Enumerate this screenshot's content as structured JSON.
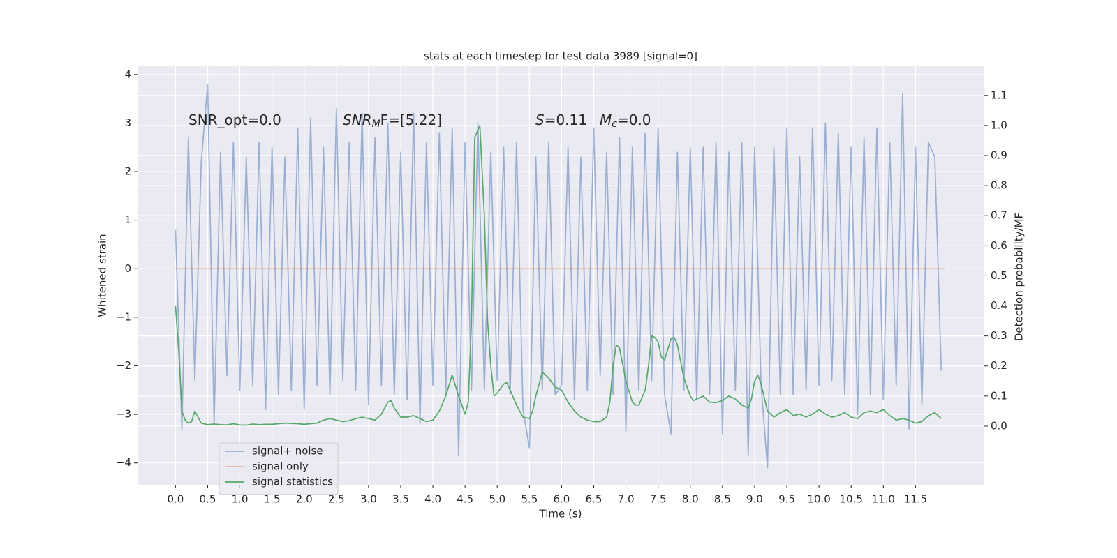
{
  "chart_data": {
    "type": "line",
    "title": "stats at each timestep for test data 3989 [signal=0]",
    "xlabel": "Time (s)",
    "ylabel": "Whitened strain",
    "y2label": "Detection probability/MF",
    "xlim": [
      -0.59,
      12.57
    ],
    "ylim": [
      -4.45,
      4.17
    ],
    "y2lim": [
      -0.195,
      1.197
    ],
    "grid": true,
    "legend": "lower left",
    "xticks": [
      {
        "value": 0,
        "label": "0.0"
      },
      {
        "value": 0.5,
        "label": "0.5"
      },
      {
        "value": 1,
        "label": "1.0"
      },
      {
        "value": 1.5,
        "label": "1.5"
      },
      {
        "value": 2,
        "label": "2.0"
      },
      {
        "value": 2.5,
        "label": "2.5"
      },
      {
        "value": 3,
        "label": "3.0"
      },
      {
        "value": 3.5,
        "label": "3.5"
      },
      {
        "value": 4,
        "label": "4.0"
      },
      {
        "value": 4.5,
        "label": "4.5"
      },
      {
        "value": 5,
        "label": "5.0"
      },
      {
        "value": 5.5,
        "label": "5.5"
      },
      {
        "value": 6,
        "label": "6.0"
      },
      {
        "value": 6.5,
        "label": "6.5"
      },
      {
        "value": 7,
        "label": "7.0"
      },
      {
        "value": 7.5,
        "label": "7.5"
      },
      {
        "value": 8,
        "label": "8.0"
      },
      {
        "value": 8.5,
        "label": "8.5"
      },
      {
        "value": 9,
        "label": "9.0"
      },
      {
        "value": 9.5,
        "label": "9.5"
      },
      {
        "value": 10,
        "label": "10.0"
      },
      {
        "value": 10.5,
        "label": "10.5"
      },
      {
        "value": 11,
        "label": "11.0"
      },
      {
        "value": 11.5,
        "label": "11.5"
      }
    ],
    "yticks": [
      {
        "value": -4,
        "label": "−4"
      },
      {
        "value": -3,
        "label": "−3"
      },
      {
        "value": -2,
        "label": "−2"
      },
      {
        "value": -1,
        "label": "−1"
      },
      0,
      1,
      2,
      3,
      4
    ],
    "y2ticks": [
      {
        "value": 0,
        "label": "0.0"
      },
      {
        "value": 0.1,
        "label": "0.1"
      },
      {
        "value": 0.2,
        "label": "0.2"
      },
      {
        "value": 0.3,
        "label": "0.3"
      },
      {
        "value": 0.4,
        "label": "0.4"
      },
      {
        "value": 0.5,
        "label": "0.5"
      },
      {
        "value": 0.6,
        "label": "0.6"
      },
      {
        "value": 0.7,
        "label": "0.7"
      },
      {
        "value": 0.8,
        "label": "0.8"
      },
      {
        "value": 0.9,
        "label": "0.9"
      },
      {
        "value": 1,
        "label": "1.0"
      },
      {
        "value": 1.1,
        "label": "1.1"
      }
    ],
    "annotations": [
      {
        "parts": [
          "SNR_opt=0.0"
        ]
      },
      {
        "parts": [
          "SNR",
          "M",
          "F=[5.22]"
        ]
      },
      {
        "parts": [
          "S",
          "=0.11"
        ]
      },
      {
        "parts": [
          "M",
          "c",
          "=0.0"
        ]
      }
    ],
    "series": [
      {
        "name": "signal+ noise",
        "color": "#4c72b0",
        "opacity": 0.5,
        "x": [
          0,
          0.1,
          0.2,
          0.3,
          0.4,
          0.5,
          0.6,
          0.7,
          0.8,
          0.9,
          1,
          1.1,
          1.2,
          1.3,
          1.4,
          1.5,
          1.6,
          1.7,
          1.8,
          1.9,
          2,
          2.1,
          2.2,
          2.3,
          2.4,
          2.5,
          2.6,
          2.7,
          2.8,
          2.9,
          3,
          3.1,
          3.2,
          3.3,
          3.4,
          3.5,
          3.6,
          3.7,
          3.8,
          3.9,
          4,
          4.1,
          4.2,
          4.3,
          4.4,
          4.5,
          4.6,
          4.7,
          4.8,
          4.9,
          5,
          5.1,
          5.2,
          5.3,
          5.4,
          5.5,
          5.6,
          5.7,
          5.8,
          5.9,
          6,
          6.1,
          6.2,
          6.3,
          6.4,
          6.5,
          6.6,
          6.7,
          6.8,
          6.9,
          7,
          7.1,
          7.2,
          7.3,
          7.4,
          7.5,
          7.6,
          7.7,
          7.8,
          7.9,
          8,
          8.1,
          8.2,
          8.3,
          8.4,
          8.5,
          8.6,
          8.7,
          8.8,
          8.9,
          9,
          9.1,
          9.2,
          9.3,
          9.4,
          9.5,
          9.6,
          9.7,
          9.8,
          9.9,
          10,
          10.1,
          10.2,
          10.3,
          10.4,
          10.5,
          10.6,
          10.7,
          10.8,
          10.9,
          11,
          11.1,
          11.2,
          11.3,
          11.4,
          11.5,
          11.6,
          11.7,
          11.8,
          11.9
        ],
        "values": [
          0.8,
          -3.3,
          2.7,
          -2.3,
          2.2,
          3.8,
          -3.2,
          2.4,
          -2.2,
          2.6,
          -2.5,
          2.3,
          -2.4,
          2.6,
          -2.9,
          2.5,
          -2.6,
          2.3,
          -2.5,
          2.9,
          -2.9,
          3.1,
          -2.4,
          2.5,
          -2.6,
          3.3,
          -2.3,
          2.6,
          -2.5,
          3.2,
          -2.8,
          2.7,
          -2.4,
          3.0,
          -2.6,
          2.4,
          -2.7,
          3.2,
          -3.2,
          2.6,
          -2.4,
          2.8,
          -2.6,
          2.9,
          -3.85,
          2.6,
          -2.5,
          3.0,
          -2.5,
          2.4,
          -2.3,
          2.5,
          -2.6,
          2.6,
          -2.9,
          -3.7,
          2.3,
          -2.5,
          2.6,
          -2.6,
          -2.4,
          2.5,
          -2.7,
          2.3,
          -2.5,
          2.9,
          -2.2,
          2.4,
          -2.6,
          2.7,
          -3.35,
          2.5,
          -2.5,
          2.8,
          -2.3,
          2.9,
          -2.6,
          -3.4,
          2.4,
          -2.5,
          2.5,
          -2.7,
          2.5,
          -2.6,
          2.6,
          -3.4,
          2.4,
          -2.5,
          2.6,
          -3.85,
          2.5,
          -2.4,
          -4.1,
          2.5,
          -2.6,
          2.9,
          -2.6,
          2.3,
          -2.5,
          2.9,
          -2.4,
          3.0,
          -2.3,
          2.8,
          -2.6,
          2.5,
          -3.0,
          2.7,
          -2.6,
          2.9,
          -2.7,
          2.6,
          -2.4,
          3.6,
          -3.3,
          2.5,
          -2.8,
          2.6,
          2.3,
          -2.1
        ]
      },
      {
        "name": "signal only",
        "color": "#dd8452",
        "opacity": 0.5,
        "x": [
          0,
          11.95
        ],
        "values": [
          0,
          0
        ]
      },
      {
        "name": "signal statistics",
        "color": "#55a868",
        "opacity": 1,
        "axis": "y2",
        "x": [
          0,
          0.05,
          0.1,
          0.15,
          0.2,
          0.25,
          0.3,
          0.35,
          0.4,
          0.5,
          0.6,
          0.7,
          0.8,
          0.9,
          1.0,
          1.1,
          1.2,
          1.3,
          1.4,
          1.5,
          1.7,
          1.9,
          2.0,
          2.2,
          2.3,
          2.4,
          2.5,
          2.6,
          2.7,
          2.8,
          2.9,
          3.0,
          3.1,
          3.2,
          3.3,
          3.35,
          3.4,
          3.5,
          3.6,
          3.7,
          3.8,
          3.9,
          4.0,
          4.1,
          4.2,
          4.3,
          4.4,
          4.5,
          4.55,
          4.6,
          4.65,
          4.73,
          4.8,
          4.85,
          4.9,
          4.95,
          5.0,
          5.1,
          5.15,
          5.2,
          5.3,
          5.4,
          5.5,
          5.55,
          5.6,
          5.7,
          5.75,
          5.8,
          5.9,
          6.0,
          6.1,
          6.2,
          6.3,
          6.4,
          6.5,
          6.6,
          6.7,
          6.75,
          6.8,
          6.85,
          6.9,
          7.0,
          7.1,
          7.15,
          7.2,
          7.3,
          7.35,
          7.4,
          7.45,
          7.5,
          7.55,
          7.6,
          7.7,
          7.75,
          7.8,
          7.9,
          8.0,
          8.05,
          8.1,
          8.2,
          8.3,
          8.4,
          8.5,
          8.6,
          8.7,
          8.8,
          8.9,
          8.95,
          9.0,
          9.05,
          9.1,
          9.2,
          9.3,
          9.4,
          9.5,
          9.6,
          9.7,
          9.8,
          9.9,
          10.0,
          10.1,
          10.2,
          10.3,
          10.4,
          10.5,
          10.6,
          10.7,
          10.8,
          10.9,
          11.0,
          11.1,
          11.2,
          11.3,
          11.4,
          11.5,
          11.6,
          11.7,
          11.8,
          11.9
        ],
        "values": [
          0.4,
          0.25,
          0.05,
          0.02,
          0.01,
          0.015,
          0.05,
          0.03,
          0.01,
          0.005,
          0.007,
          0.005,
          0.004,
          0.008,
          0.004,
          0.003,
          0.007,
          0.005,
          0.006,
          0.006,
          0.01,
          0.008,
          0.006,
          0.01,
          0.02,
          0.025,
          0.02,
          0.015,
          0.018,
          0.025,
          0.03,
          0.025,
          0.02,
          0.04,
          0.08,
          0.085,
          0.06,
          0.03,
          0.03,
          0.035,
          0.025,
          0.015,
          0.02,
          0.05,
          0.1,
          0.17,
          0.1,
          0.04,
          0.08,
          0.35,
          0.96,
          1.0,
          0.7,
          0.35,
          0.2,
          0.1,
          0.11,
          0.14,
          0.145,
          0.12,
          0.07,
          0.03,
          0.025,
          0.05,
          0.1,
          0.18,
          0.17,
          0.16,
          0.13,
          0.12,
          0.08,
          0.05,
          0.03,
          0.02,
          0.015,
          0.015,
          0.03,
          0.08,
          0.2,
          0.27,
          0.26,
          0.15,
          0.08,
          0.07,
          0.07,
          0.12,
          0.2,
          0.3,
          0.295,
          0.28,
          0.23,
          0.22,
          0.29,
          0.295,
          0.27,
          0.16,
          0.1,
          0.085,
          0.09,
          0.1,
          0.08,
          0.078,
          0.085,
          0.1,
          0.09,
          0.07,
          0.06,
          0.09,
          0.15,
          0.17,
          0.14,
          0.05,
          0.03,
          0.045,
          0.055,
          0.035,
          0.04,
          0.03,
          0.04,
          0.055,
          0.04,
          0.03,
          0.035,
          0.045,
          0.03,
          0.025,
          0.045,
          0.05,
          0.045,
          0.055,
          0.035,
          0.02,
          0.025,
          0.02,
          0.01,
          0.015,
          0.035,
          0.045,
          0.025
        ]
      }
    ]
  }
}
